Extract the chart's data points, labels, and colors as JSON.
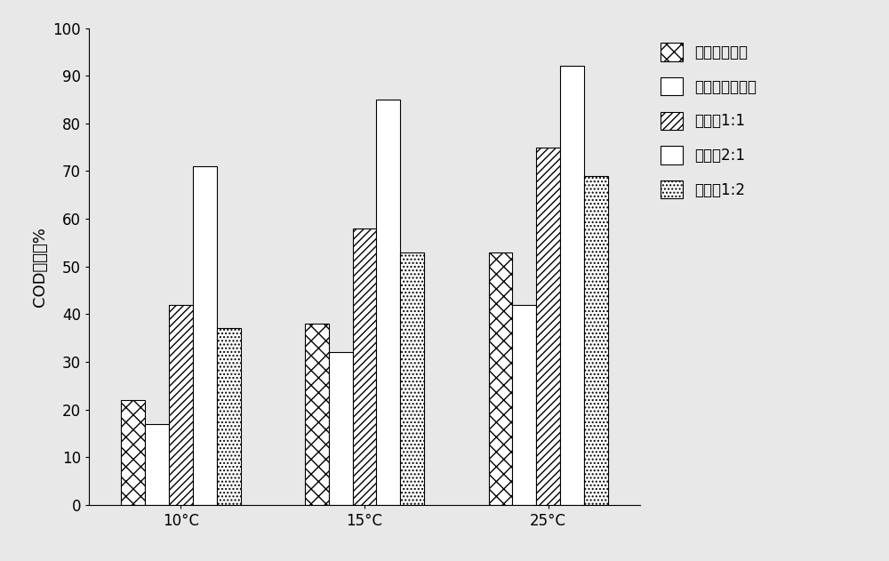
{
  "categories": [
    "10°C",
    "15°C",
    "25°C"
  ],
  "series": [
    {
      "label": "腐败希瓦氏菌",
      "values": [
        22,
        38,
        53
      ],
      "hatch": "xx",
      "facecolor": "white",
      "edgecolor": "black"
    },
    {
      "label": "罕丸麮假单胞菌",
      "values": [
        17,
        32,
        42
      ],
      "hatch": "",
      "facecolor": "white",
      "edgecolor": "black"
    },
    {
      "label": "复合菌1:1",
      "values": [
        42,
        58,
        75
      ],
      "hatch": "////",
      "facecolor": "white",
      "edgecolor": "black"
    },
    {
      "label": "复合菌2:1",
      "values": [
        71,
        85,
        92
      ],
      "hatch": "===",
      "facecolor": "white",
      "edgecolor": "black"
    },
    {
      "label": "复合菌1:2",
      "values": [
        37,
        53,
        69
      ],
      "hatch": "....",
      "facecolor": "white",
      "edgecolor": "black"
    }
  ],
  "ylabel": "COD去除率%",
  "ylim": [
    0,
    100
  ],
  "yticks": [
    0,
    10,
    20,
    30,
    40,
    50,
    60,
    70,
    80,
    90,
    100
  ],
  "bar_width": 0.13,
  "background_color": "#e8e8e8",
  "axis_fontsize": 13,
  "legend_fontsize": 12,
  "tick_fontsize": 12
}
